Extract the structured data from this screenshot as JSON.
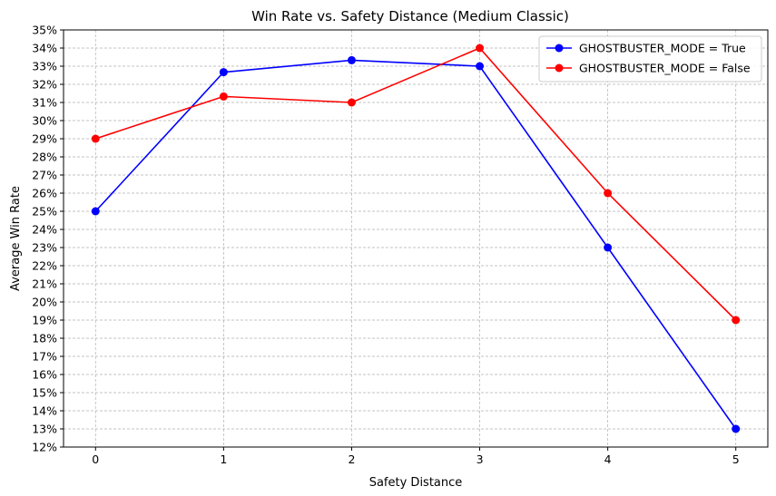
{
  "chart_data": {
    "type": "line",
    "title": "Win Rate vs. Safety Distance (Medium Classic)",
    "xlabel": "Safety Distance",
    "ylabel": "Average Win Rate",
    "x": [
      0,
      1,
      2,
      3,
      4,
      5
    ],
    "x_tick_labels": [
      "0",
      "1",
      "2",
      "3",
      "4",
      "5"
    ],
    "xlim": [
      -0.25,
      5.25
    ],
    "ylim": [
      0.12,
      0.35
    ],
    "y_tick_labels": [
      "12%",
      "13%",
      "14%",
      "15%",
      "16%",
      "17%",
      "18%",
      "19%",
      "20%",
      "21%",
      "22%",
      "23%",
      "24%",
      "25%",
      "26%",
      "27%",
      "28%",
      "29%",
      "30%",
      "31%",
      "32%",
      "33%",
      "34%",
      "35%"
    ],
    "y_ticks": [
      0.12,
      0.13,
      0.14,
      0.15,
      0.16,
      0.17,
      0.18,
      0.19,
      0.2,
      0.21,
      0.22,
      0.23,
      0.24,
      0.25,
      0.26,
      0.27,
      0.28,
      0.29,
      0.3,
      0.31,
      0.32,
      0.33,
      0.34,
      0.35
    ],
    "grid": true,
    "legend_position": "top-right",
    "series": [
      {
        "name": "GHOSTBUSTER_MODE = True",
        "color": "#0000ff",
        "marker": "circle",
        "values": [
          0.25,
          0.3267,
          0.3333,
          0.33,
          0.23,
          0.13
        ]
      },
      {
        "name": "GHOSTBUSTER_MODE = False",
        "color": "#ff0000",
        "marker": "circle",
        "values": [
          0.29,
          0.3133,
          0.31,
          0.34,
          0.26,
          0.19
        ]
      }
    ]
  }
}
